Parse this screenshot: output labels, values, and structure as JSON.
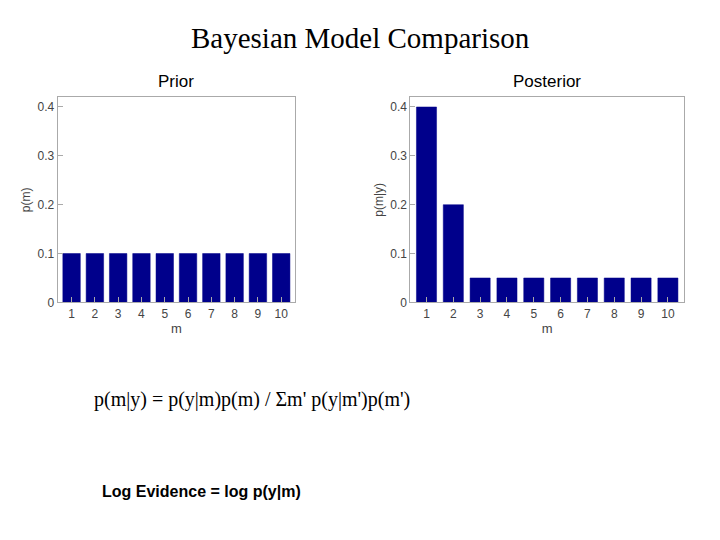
{
  "title": "Bayesian Model Comparison",
  "annotations": [
    "p(m|y) = p(y|m)p(m) / Σm' p(y|m')p(m')",
    "Log Evidence = log p(y|m)"
  ],
  "chart_data": [
    {
      "type": "bar",
      "title": "Prior",
      "xlabel": "m",
      "ylabel": "p(m)",
      "x": [
        1,
        2,
        3,
        4,
        5,
        6,
        7,
        8,
        9,
        10
      ],
      "values": [
        0.1,
        0.1,
        0.1,
        0.1,
        0.1,
        0.1,
        0.1,
        0.1,
        0.1,
        0.1
      ],
      "color": "#00008B",
      "xlim": [
        0.4,
        10.6
      ],
      "xticks": [
        1,
        2,
        3,
        4,
        5,
        6,
        7,
        8,
        9,
        10
      ],
      "ylim": [
        0,
        0.42
      ],
      "yticks": [
        0,
        0.1,
        0.2,
        0.3,
        0.4
      ],
      "grid": false
    },
    {
      "type": "bar",
      "title": "Posterior",
      "xlabel": "m",
      "ylabel": "p(m|y)",
      "x": [
        1,
        2,
        3,
        4,
        5,
        6,
        7,
        8,
        9,
        10
      ],
      "values": [
        0.4,
        0.2,
        0.05,
        0.05,
        0.05,
        0.05,
        0.05,
        0.05,
        0.05,
        0.05
      ],
      "color": "#00008B",
      "xlim": [
        0.4,
        10.6
      ],
      "xticks": [
        1,
        2,
        3,
        4,
        5,
        6,
        7,
        8,
        9,
        10
      ],
      "ylim": [
        0,
        0.42
      ],
      "yticks": [
        0,
        0.1,
        0.2,
        0.3,
        0.4
      ],
      "grid": false
    }
  ]
}
